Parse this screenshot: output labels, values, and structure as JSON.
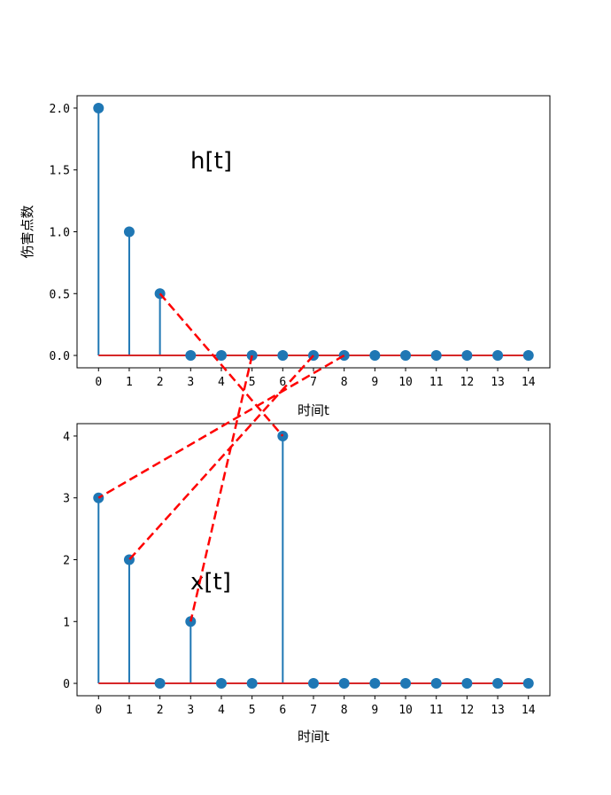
{
  "chart_data": [
    {
      "type": "stem",
      "name": "h",
      "annotation": "h[t]",
      "xlabel": "时间t",
      "ylabel": "伤害点数",
      "x": [
        0,
        1,
        2,
        3,
        4,
        5,
        6,
        7,
        8,
        9,
        10,
        11,
        12,
        13,
        14
      ],
      "values": [
        2,
        1,
        0.5,
        0,
        0,
        0,
        0,
        0,
        0,
        0,
        0,
        0,
        0,
        0,
        0
      ],
      "xticks": [
        "0",
        "1",
        "2",
        "3",
        "4",
        "5",
        "6",
        "7",
        "8",
        "9",
        "10",
        "11",
        "12",
        "13",
        "14"
      ],
      "yticks": [
        "0.0",
        "0.5",
        "1.0",
        "1.5",
        "2.0"
      ],
      "ylim": [
        -0.1,
        2.1
      ],
      "xlim": [
        -0.7,
        14.7
      ]
    },
    {
      "type": "stem",
      "name": "x",
      "annotation": "x[t]",
      "xlabel": "时间t",
      "ylabel": "",
      "x": [
        0,
        1,
        2,
        3,
        4,
        5,
        6,
        7,
        8,
        9,
        10,
        11,
        12,
        13,
        14
      ],
      "values": [
        3,
        2,
        0,
        1,
        0,
        0,
        4,
        0,
        0,
        0,
        0,
        0,
        0,
        0,
        0
      ],
      "xticks": [
        "0",
        "1",
        "2",
        "3",
        "4",
        "5",
        "6",
        "7",
        "8",
        "9",
        "10",
        "11",
        "12",
        "13",
        "14"
      ],
      "yticks": [
        "0",
        "1",
        "2",
        "3",
        "4"
      ],
      "ylim": [
        -0.2,
        4.2
      ],
      "xlim": [
        -0.7,
        14.7
      ]
    }
  ],
  "connectors": [
    {
      "from": {
        "chart": 0,
        "x": 2,
        "y": 0.5
      },
      "to": {
        "chart": 1,
        "x": 6,
        "y": 4
      }
    },
    {
      "from": {
        "chart": 0,
        "x": 5,
        "y": 0
      },
      "to": {
        "chart": 1,
        "x": 3,
        "y": 1
      }
    },
    {
      "from": {
        "chart": 0,
        "x": 7,
        "y": 0
      },
      "to": {
        "chart": 1,
        "x": 1,
        "y": 2
      }
    },
    {
      "from": {
        "chart": 0,
        "x": 8,
        "y": 0
      },
      "to": {
        "chart": 1,
        "x": 0,
        "y": 3
      }
    }
  ],
  "colors": {
    "stem": "#1f77b4",
    "baseline": "#d62728",
    "connector": "#ff0000"
  }
}
